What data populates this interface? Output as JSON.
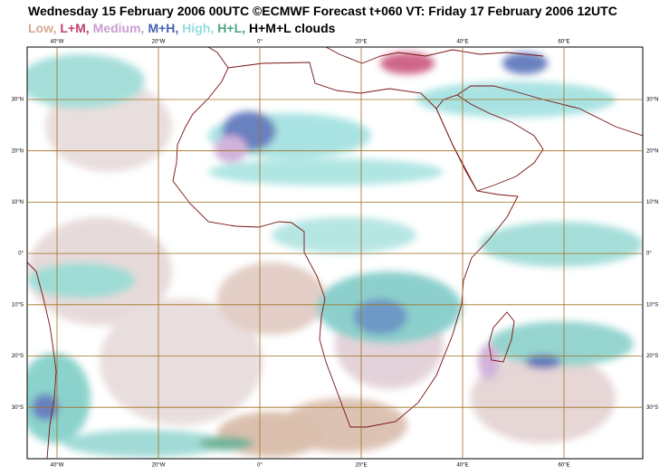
{
  "header": {
    "title": "Wednesday 15 February 2006 00UTC ©ECMWF Forecast t+060 VT: Friday 17 February 2006 12UTC"
  },
  "legend": [
    {
      "label": "Low,",
      "color": "#d4aa90"
    },
    {
      "label": "L+M,",
      "color": "#c2406e"
    },
    {
      "label": "Medium,",
      "color": "#c8a0d2"
    },
    {
      "label": "M+H,",
      "color": "#4462b0"
    },
    {
      "label": "High,",
      "color": "#94dcdc"
    },
    {
      "label": "H+L,",
      "color": "#50a282"
    },
    {
      "label": "H+M+L clouds",
      "color": "#000000"
    }
  ],
  "longitude_labels": [
    "40°W",
    "20°W",
    "0°",
    "20°E",
    "40°E",
    "60°E"
  ],
  "latitude_labels": [
    "30°N",
    "20°N",
    "10°N",
    "0°",
    "10°S",
    "20°S",
    "30°S"
  ]
}
